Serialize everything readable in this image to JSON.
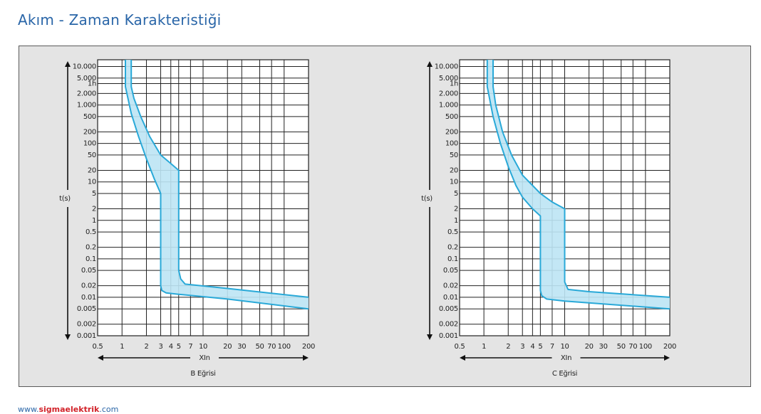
{
  "header": {
    "title": "Akım - Zaman Karakteristiği"
  },
  "footer": {
    "prefix": "www.",
    "brand": "sigmaelektrik",
    "suffix": ".com"
  },
  "chart_data": [
    {
      "type": "band",
      "caption": "B Eğrisi",
      "xlabel": "XIn",
      "ylabel": "t(s)",
      "log_x": true,
      "log_y": true,
      "grid": true,
      "color": "#29a9d8",
      "fill": "#bde4f4",
      "xlim": [
        0.5,
        200
      ],
      "ylim": [
        0.001,
        15000
      ],
      "xticks": [
        0.5,
        1,
        2,
        3,
        4,
        5,
        7,
        10,
        20,
        30,
        50,
        70,
        100,
        200
      ],
      "yticks": [
        {
          "value": 10000,
          "label": "10.000"
        },
        {
          "value": 5000,
          "label": "5.000"
        },
        {
          "value": 3600,
          "label": "1h"
        },
        {
          "value": 2000,
          "label": "2.000"
        },
        {
          "value": 1000,
          "label": "1.000"
        },
        500,
        200,
        100,
        50,
        20,
        10,
        5,
        2,
        1,
        0.5,
        0.2,
        0.1,
        0.05,
        0.02,
        0.01,
        0.005,
        0.002,
        0.001
      ],
      "series": [
        {
          "x": [
            1.1,
            1.1,
            1.3,
            1.6,
            2,
            2.5,
            3,
            3,
            3.1,
            3.5,
            5,
            20,
            200
          ],
          "values": [
            15000,
            3000,
            600,
            150,
            40,
            12,
            5,
            0.02,
            0.015,
            0.013,
            0.012,
            0.009,
            0.005
          ]
        },
        {
          "x": [
            200,
            20,
            6,
            5.3,
            5,
            5,
            4,
            3,
            2.2,
            1.7,
            1.4,
            1.3,
            1.3
          ],
          "values": [
            0.01,
            0.017,
            0.022,
            0.03,
            0.05,
            20,
            30,
            50,
            150,
            500,
            1500,
            3000,
            15000
          ]
        }
      ]
    },
    {
      "type": "band",
      "caption": "C Eğrisi",
      "xlabel": "XIn",
      "ylabel": "t(s)",
      "log_x": true,
      "log_y": true,
      "grid": true,
      "color": "#29a9d8",
      "fill": "#bde4f4",
      "xlim": [
        0.5,
        200
      ],
      "ylim": [
        0.001,
        15000
      ],
      "xticks": [
        0.5,
        1,
        2,
        3,
        4,
        5,
        7,
        10,
        20,
        30,
        50,
        70,
        100,
        200
      ],
      "yticks": [
        {
          "value": 10000,
          "label": "10.000"
        },
        {
          "value": 5000,
          "label": "5.000"
        },
        {
          "value": 3600,
          "label": "1h"
        },
        {
          "value": 2000,
          "label": "2.000"
        },
        {
          "value": 1000,
          "label": "1.000"
        },
        500,
        200,
        100,
        50,
        20,
        10,
        5,
        2,
        1,
        0.5,
        0.2,
        0.1,
        0.05,
        0.02,
        0.01,
        0.005,
        0.002,
        0.001
      ],
      "series": [
        {
          "x": [
            1.1,
            1.1,
            1.3,
            1.6,
            2,
            2.5,
            3,
            4,
            5,
            5,
            5.2,
            6,
            10,
            200
          ],
          "values": [
            15000,
            3000,
            500,
            100,
            25,
            8,
            4,
            2,
            1.3,
            0.015,
            0.011,
            0.009,
            0.008,
            0.005
          ]
        },
        {
          "x": [
            200,
            20,
            11,
            10,
            10,
            7,
            5,
            3,
            2.2,
            1.7,
            1.4,
            1.3,
            1.3
          ],
          "values": [
            0.01,
            0.014,
            0.016,
            0.025,
            2,
            3,
            5,
            15,
            50,
            200,
            1000,
            3000,
            15000
          ]
        }
      ]
    }
  ]
}
